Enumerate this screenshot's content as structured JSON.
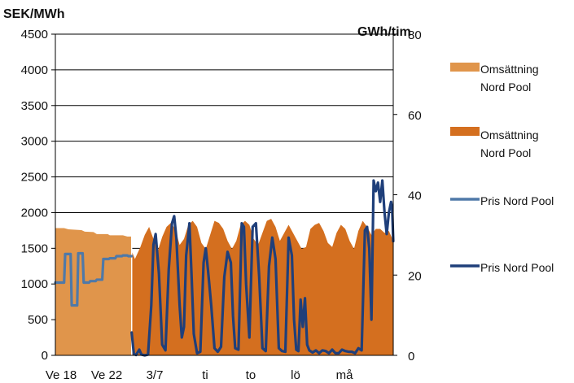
{
  "chart_data": {
    "type": "area",
    "left_axis": {
      "unit": "SEK/MWh",
      "ylim": [
        0,
        4500
      ],
      "ticks": [
        "0",
        "500",
        "1000",
        "1500",
        "2000",
        "2500",
        "3000",
        "3500",
        "4000",
        "4500"
      ]
    },
    "right_axis": {
      "unit": "GWh/tim",
      "ylim": [
        0,
        80
      ],
      "ticks": [
        "0",
        "20",
        "40",
        "60",
        "80"
      ]
    },
    "x_labels": [
      "Ve 18",
      "Ve 22",
      "3/7",
      "ti",
      "to",
      "lö",
      "må"
    ],
    "grid": "horizontal",
    "legend": {
      "placement": "right",
      "items": [
        {
          "line1": "Omsättning",
          "line2": "Nord Pool",
          "type": "area",
          "color": "#E0954B"
        },
        {
          "line1": "Omsättning",
          "line2": "Nord Pool",
          "type": "area",
          "color": "#D46F1F"
        },
        {
          "line1": "Pris Nord Pool",
          "line2": "",
          "type": "line",
          "color": "#4F79A8"
        },
        {
          "line1": "Pris Nord Pool",
          "line2": "",
          "type": "line",
          "color": "#1F3F7A"
        }
      ]
    },
    "series": [
      {
        "type": "area",
        "axis": "right",
        "color": "#E0954B",
        "x": [
          0,
          8,
          12,
          24,
          27,
          35,
          38,
          48,
          50,
          62,
          66,
          70
        ],
        "values": [
          31.7,
          31.7,
          31.4,
          31.2,
          30.8,
          30.7,
          30.2,
          30.2,
          29.9,
          29.9,
          29.6,
          29.6
        ]
      },
      {
        "type": "area",
        "axis": "right",
        "color": "#D46F1F",
        "x": [
          70,
          73,
          78,
          82,
          86,
          90,
          94,
          98,
          102,
          106,
          110,
          114,
          118,
          122,
          126,
          130,
          134,
          138,
          142,
          146,
          150,
          154,
          158,
          162,
          166,
          170,
          174,
          178,
          182,
          186,
          190,
          194,
          198,
          202,
          206,
          210,
          214,
          218,
          222,
          226,
          230,
          234,
          238,
          242,
          246,
          250,
          254,
          258,
          262,
          266,
          270,
          274,
          278,
          282,
          286,
          290,
          294,
          298,
          302,
          306,
          310
        ],
        "values": [
          26,
          24,
          27,
          30,
          32,
          29,
          26,
          29.5,
          32,
          33,
          31.5,
          27.5,
          29,
          32.5,
          33.5,
          32,
          28,
          26.5,
          30,
          33.5,
          33,
          31.5,
          28.5,
          26.5,
          28.5,
          32.5,
          33.5,
          32.5,
          29,
          27.5,
          30.5,
          33.5,
          34,
          32,
          28.5,
          30.5,
          32.5,
          30.5,
          28.5,
          26.5,
          27,
          31.5,
          32.5,
          33,
          31,
          28,
          27,
          30.5,
          32.5,
          31.5,
          28.5,
          26.5,
          31,
          33.5,
          32,
          30,
          31.5,
          31.5,
          30.5,
          31,
          28.5
        ]
      },
      {
        "type": "line",
        "axis": "left",
        "color": "#4F79A8",
        "x": [
          0,
          8,
          9,
          14,
          15,
          20,
          21,
          25,
          26,
          31,
          32,
          37,
          38,
          43,
          44,
          49,
          50,
          55,
          56,
          61,
          62,
          66,
          67,
          70
        ],
        "values": [
          1020,
          1020,
          1420,
          1420,
          700,
          700,
          1430,
          1430,
          1020,
          1020,
          1040,
          1040,
          1060,
          1060,
          1350,
          1350,
          1360,
          1360,
          1390,
          1390,
          1400,
          1400,
          1390,
          1390
        ]
      },
      {
        "type": "line",
        "axis": "left",
        "color": "#1F3F7A",
        "x": [
          70,
          72,
          74,
          77,
          79,
          82,
          85,
          88,
          90,
          92,
          95,
          98,
          101,
          104,
          107,
          109,
          111,
          114,
          116,
          118,
          120,
          123,
          125,
          127,
          130,
          133,
          136,
          138,
          140,
          143,
          146,
          149,
          152,
          155,
          158,
          161,
          163,
          165,
          168,
          171,
          173,
          175,
          178,
          181,
          184,
          187,
          190,
          193,
          196,
          199,
          202,
          205,
          208,
          211,
          214,
          217,
          219,
          221,
          223,
          225,
          227,
          229,
          231,
          233,
          236,
          239,
          242,
          245,
          248,
          251,
          254,
          257,
          260,
          263,
          266,
          269,
          272,
          275,
          278,
          281,
          284,
          286,
          288,
          290,
          292,
          294,
          296,
          298,
          300,
          302,
          304,
          306,
          308,
          309,
          310
        ],
        "values": [
          320,
          20,
          5,
          80,
          10,
          0,
          10,
          700,
          1550,
          1700,
          1150,
          150,
          70,
          1200,
          1850,
          1950,
          1650,
          700,
          250,
          400,
          1400,
          1850,
          1100,
          300,
          30,
          50,
          1300,
          1500,
          1200,
          700,
          100,
          50,
          120,
          1100,
          1450,
          1300,
          550,
          100,
          80,
          1850,
          1800,
          1000,
          250,
          1800,
          1850,
          1100,
          100,
          60,
          1250,
          1650,
          1350,
          100,
          60,
          50,
          1650,
          1400,
          500,
          80,
          60,
          780,
          400,
          800,
          150,
          70,
          40,
          70,
          30,
          70,
          60,
          30,
          80,
          30,
          30,
          80,
          60,
          50,
          50,
          30,
          100,
          70,
          1750,
          1800,
          1500,
          500,
          2450,
          2300,
          2420,
          2150,
          2450,
          2000,
          1700,
          2000,
          2150,
          2060,
          1600
        ]
      }
    ]
  }
}
